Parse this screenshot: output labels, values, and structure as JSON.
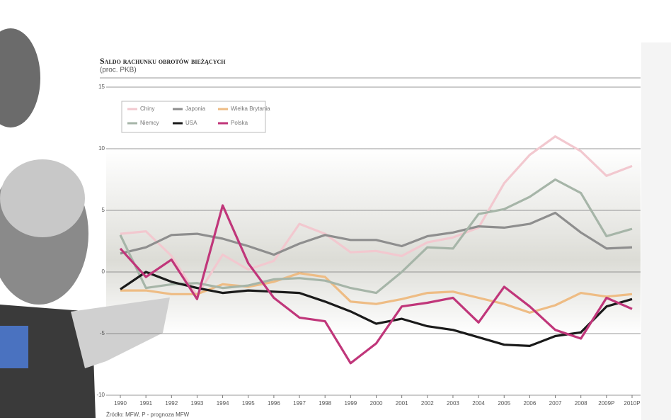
{
  "chart_data": {
    "type": "line",
    "title": "Saldo rachunku obrotów bieżących",
    "subtitle": "(proc. PKB)",
    "source": "Źródło: MFW, P - prognoza MFW",
    "categories": [
      "1990",
      "1991",
      "1992",
      "1993",
      "1994",
      "1995",
      "1996",
      "1997",
      "1998",
      "1999",
      "2000",
      "2001",
      "2002",
      "2003",
      "2004",
      "2005",
      "2006",
      "2007",
      "2008",
      "2009P",
      "2010P"
    ],
    "ylim": [
      -10,
      15
    ],
    "yticks": [
      -10,
      -5,
      0,
      5,
      10,
      15
    ],
    "grid": true,
    "series": [
      {
        "name": "Chiny",
        "color": "#f2c8cf",
        "values": [
          3.1,
          3.3,
          1.3,
          -1.9,
          1.4,
          0.2,
          0.9,
          3.9,
          3.1,
          1.6,
          1.7,
          1.3,
          2.4,
          2.8,
          3.6,
          7.2,
          9.5,
          11.0,
          9.8,
          7.8,
          8.6
        ]
      },
      {
        "name": "Japonia",
        "color": "#8e8e8e",
        "values": [
          1.5,
          2.0,
          3.0,
          3.1,
          2.7,
          2.1,
          1.4,
          2.3,
          3.0,
          2.6,
          2.6,
          2.1,
          2.9,
          3.2,
          3.7,
          3.6,
          3.9,
          4.8,
          3.2,
          1.9,
          2.0
        ]
      },
      {
        "name": "Wielka Brytania",
        "color": "#eebc84",
        "values": [
          -1.5,
          -1.5,
          -1.8,
          -1.8,
          -1.0,
          -1.2,
          -0.8,
          -0.1,
          -0.4,
          -2.4,
          -2.6,
          -2.2,
          -1.7,
          -1.6,
          -2.1,
          -2.6,
          -3.3,
          -2.7,
          -1.7,
          -2.0,
          -1.8
        ]
      },
      {
        "name": "Niemcy",
        "color": "#a6b5a8",
        "values": [
          3.0,
          -1.3,
          -1.0,
          -0.9,
          -1.3,
          -1.1,
          -0.6,
          -0.5,
          -0.7,
          -1.3,
          -1.7,
          0.0,
          2.0,
          1.9,
          4.7,
          5.1,
          6.1,
          7.5,
          6.4,
          2.9,
          3.5
        ]
      },
      {
        "name": "USA",
        "color": "#1a1a1a",
        "values": [
          -1.4,
          0.0,
          -0.8,
          -1.3,
          -1.7,
          -1.5,
          -1.6,
          -1.7,
          -2.4,
          -3.2,
          -4.2,
          -3.8,
          -4.4,
          -4.7,
          -5.3,
          -5.9,
          -6.0,
          -5.2,
          -4.9,
          -2.8,
          -2.2
        ]
      },
      {
        "name": "Polska",
        "color": "#c0367a",
        "values": [
          1.9,
          -0.4,
          1.0,
          -2.2,
          5.4,
          0.7,
          -2.1,
          -3.7,
          -4.0,
          -7.4,
          -5.8,
          -2.8,
          -2.5,
          -2.1,
          -4.1,
          -1.2,
          -2.8,
          -4.7,
          -5.4,
          -2.1,
          -3.0
        ]
      }
    ]
  }
}
